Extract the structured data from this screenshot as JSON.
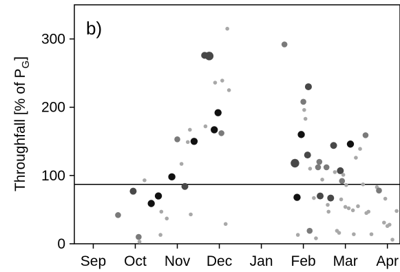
{
  "chart_data": {
    "type": "scatter",
    "panel_label": "b)",
    "ylabel_main": "Throughfall [% of P",
    "ylabel_sub": "G",
    "ylabel_end": "]",
    "ylim": [
      0,
      350
    ],
    "yticks": [
      0,
      100,
      200,
      300
    ],
    "xticks": [
      "Sep",
      "Oct",
      "Nov",
      "Dec",
      "Jan",
      "Feb",
      "Mar",
      "Apr"
    ],
    "x_unit": "month (Sep = 0)",
    "xlim": [
      -0.45,
      7.3
    ],
    "reference_line": {
      "y": 87
    },
    "grid": false,
    "legend": "none",
    "colors": {
      "small": "#a8a8a8",
      "medium": "#7a7a7a",
      "large": "#484848",
      "xlarge": "#111111"
    },
    "points": [
      {
        "x": 0.59,
        "y": 42,
        "size": "medium"
      },
      {
        "x": 0.95,
        "y": 77,
        "size": "large"
      },
      {
        "x": 1.08,
        "y": 10,
        "size": "medium"
      },
      {
        "x": 1.1,
        "y": 3,
        "size": "small"
      },
      {
        "x": 1.22,
        "y": 93,
        "size": "small"
      },
      {
        "x": 1.38,
        "y": 59,
        "size": "xlarge"
      },
      {
        "x": 1.55,
        "y": 70,
        "size": "xlarge"
      },
      {
        "x": 1.6,
        "y": 13,
        "size": "small"
      },
      {
        "x": 1.62,
        "y": 47,
        "size": "small"
      },
      {
        "x": 1.75,
        "y": 37,
        "size": "small"
      },
      {
        "x": 1.87,
        "y": 98,
        "size": "xlarge"
      },
      {
        "x": 2.0,
        "y": 153,
        "size": "medium"
      },
      {
        "x": 2.1,
        "y": 117,
        "size": "small"
      },
      {
        "x": 2.18,
        "y": 84,
        "size": "large"
      },
      {
        "x": 2.25,
        "y": 149,
        "size": "small"
      },
      {
        "x": 2.3,
        "y": 167,
        "size": "small"
      },
      {
        "x": 2.32,
        "y": 43,
        "size": "small"
      },
      {
        "x": 2.4,
        "y": 150,
        "size": "xlarge"
      },
      {
        "x": 2.65,
        "y": 276,
        "size": "large"
      },
      {
        "x": 2.67,
        "y": 172,
        "size": "small"
      },
      {
        "x": 2.76,
        "y": 275,
        "size": "large"
      },
      {
        "x": 2.88,
        "y": 167,
        "size": "xlarge"
      },
      {
        "x": 2.9,
        "y": 236,
        "size": "small"
      },
      {
        "x": 2.97,
        "y": 192,
        "size": "xlarge"
      },
      {
        "x": 3.05,
        "y": 162,
        "size": "medium"
      },
      {
        "x": 3.07,
        "y": 239,
        "size": "small"
      },
      {
        "x": 3.15,
        "y": 29,
        "size": "small"
      },
      {
        "x": 3.19,
        "y": 315,
        "size": "small"
      },
      {
        "x": 3.23,
        "y": 225,
        "size": "small"
      },
      {
        "x": 4.55,
        "y": 292,
        "size": "medium"
      },
      {
        "x": 4.8,
        "y": 118,
        "size": "large"
      },
      {
        "x": 4.85,
        "y": 68,
        "size": "xlarge"
      },
      {
        "x": 4.87,
        "y": 13,
        "size": "small"
      },
      {
        "x": 4.95,
        "y": 160,
        "size": "xlarge"
      },
      {
        "x": 5.0,
        "y": 208,
        "size": "medium"
      },
      {
        "x": 5.02,
        "y": 196,
        "size": "small"
      },
      {
        "x": 5.05,
        "y": 183,
        "size": "small"
      },
      {
        "x": 5.1,
        "y": 130,
        "size": "large"
      },
      {
        "x": 5.12,
        "y": 230,
        "size": "large"
      },
      {
        "x": 5.15,
        "y": 19,
        "size": "medium"
      },
      {
        "x": 5.16,
        "y": 110,
        "size": "small"
      },
      {
        "x": 5.25,
        "y": 67,
        "size": "small"
      },
      {
        "x": 5.3,
        "y": 8,
        "size": "small"
      },
      {
        "x": 5.35,
        "y": 112,
        "size": "medium"
      },
      {
        "x": 5.38,
        "y": 120,
        "size": "medium"
      },
      {
        "x": 5.4,
        "y": 70,
        "size": "large"
      },
      {
        "x": 5.45,
        "y": 94,
        "size": "small"
      },
      {
        "x": 5.55,
        "y": 112,
        "size": "medium"
      },
      {
        "x": 5.58,
        "y": 57,
        "size": "small"
      },
      {
        "x": 5.6,
        "y": 47,
        "size": "small"
      },
      {
        "x": 5.65,
        "y": 67,
        "size": "large"
      },
      {
        "x": 5.72,
        "y": 144,
        "size": "large"
      },
      {
        "x": 5.75,
        "y": 105,
        "size": "small"
      },
      {
        "x": 5.8,
        "y": 19,
        "size": "small"
      },
      {
        "x": 5.85,
        "y": 16,
        "size": "small"
      },
      {
        "x": 5.88,
        "y": 107,
        "size": "large"
      },
      {
        "x": 5.9,
        "y": 65,
        "size": "small"
      },
      {
        "x": 5.92,
        "y": 92,
        "size": "medium"
      },
      {
        "x": 5.95,
        "y": 101,
        "size": "small"
      },
      {
        "x": 6.0,
        "y": 54,
        "size": "small"
      },
      {
        "x": 6.02,
        "y": 86,
        "size": "small"
      },
      {
        "x": 6.08,
        "y": 52,
        "size": "small"
      },
      {
        "x": 6.12,
        "y": 146,
        "size": "xlarge"
      },
      {
        "x": 6.18,
        "y": 49,
        "size": "small"
      },
      {
        "x": 6.2,
        "y": 14,
        "size": "small"
      },
      {
        "x": 6.25,
        "y": 126,
        "size": "small"
      },
      {
        "x": 6.3,
        "y": 55,
        "size": "small"
      },
      {
        "x": 6.35,
        "y": 139,
        "size": "small"
      },
      {
        "x": 6.42,
        "y": 87,
        "size": "small"
      },
      {
        "x": 6.48,
        "y": 159,
        "size": "medium"
      },
      {
        "x": 6.5,
        "y": 45,
        "size": "small"
      },
      {
        "x": 6.55,
        "y": 47,
        "size": "small"
      },
      {
        "x": 6.62,
        "y": 14,
        "size": "small"
      },
      {
        "x": 6.75,
        "y": 83,
        "size": "small"
      },
      {
        "x": 6.8,
        "y": 78,
        "size": "medium"
      },
      {
        "x": 6.92,
        "y": 31,
        "size": "small"
      },
      {
        "x": 6.95,
        "y": 66,
        "size": "small"
      },
      {
        "x": 7.0,
        "y": 26,
        "size": "small"
      },
      {
        "x": 7.05,
        "y": 28,
        "size": "small"
      },
      {
        "x": 7.12,
        "y": 6,
        "size": "small"
      },
      {
        "x": 7.22,
        "y": 48,
        "size": "small"
      }
    ]
  }
}
